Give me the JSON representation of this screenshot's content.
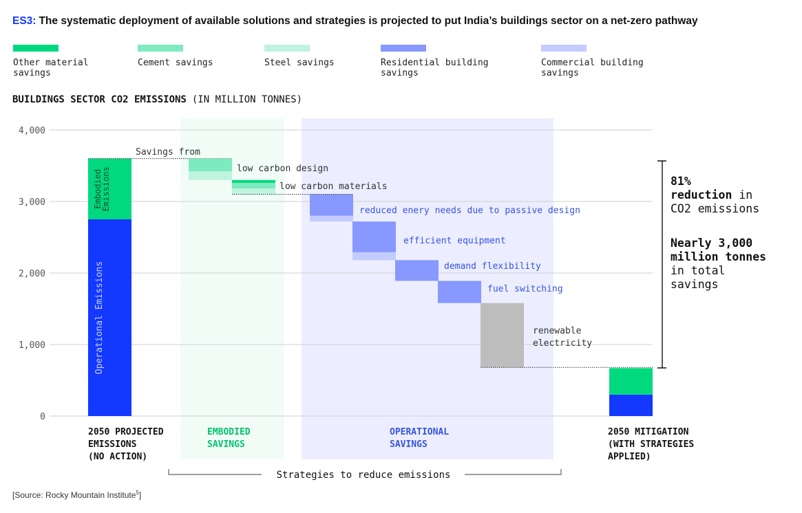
{
  "header": {
    "code": "ES3:",
    "title": "The systematic deployment of available solutions and strategies is projected to put India’s buildings sector on a net-zero pathway"
  },
  "legend": [
    {
      "label_lines": [
        "Other material",
        "savings"
      ],
      "color": "#00d97e"
    },
    {
      "label_lines": [
        "Cement savings"
      ],
      "color": "#7deabf"
    },
    {
      "label_lines": [
        "Steel savings"
      ],
      "color": "#bff3df"
    },
    {
      "label_lines": [
        "Residential building",
        "savings"
      ],
      "color": "#8798ff"
    },
    {
      "label_lines": [
        "Commercial building",
        "savings"
      ],
      "color": "#c3cbff"
    }
  ],
  "chart_title": "BUILDINGS SECTOR CO2 EMISSIONS",
  "chart_unit": "(IN MILLION TONNES)",
  "colors": {
    "operational": "#1338ff",
    "embodied": "#00d97e",
    "cement": "#7deabf",
    "steel": "#bff3df",
    "residential": "#8798ff",
    "commercial": "#c3cbff",
    "renewable": "#bdbdbd",
    "embodied_band": "#f1fcf7",
    "operational_band": "#eceeff",
    "text_blue": "#3654e0",
    "text_green": "#00c46d"
  },
  "chart_data": {
    "type": "bar",
    "subtype": "waterfall",
    "ylim": [
      0,
      4000
    ],
    "yticks": [
      0,
      1000,
      2000,
      3000,
      4000
    ],
    "ytick_labels": [
      "0",
      "1,000",
      "2,000",
      "3,000",
      "4,000"
    ],
    "grid": true,
    "start_bar": {
      "segments": [
        {
          "label": "Operational Emissions",
          "from": 0,
          "to": 2750,
          "color_key": "operational"
        },
        {
          "label_lines": [
            "Embodied",
            "Emissions"
          ],
          "from": 2750,
          "to": 3600,
          "color_key": "embodied"
        }
      ]
    },
    "savings_intro": "Savings from",
    "steps": [
      {
        "label": "low carbon design",
        "label_color": "text",
        "segments": [
          {
            "from": 3600,
            "to": 3420,
            "color_key": "cement"
          },
          {
            "from": 3420,
            "to": 3300,
            "color_key": "steel"
          }
        ]
      },
      {
        "label": "low carbon materials",
        "label_color": "text",
        "segments": [
          {
            "from": 3300,
            "to": 3260,
            "color_key": "embodied"
          },
          {
            "from": 3260,
            "to": 3180,
            "color_key": "cement"
          },
          {
            "from": 3180,
            "to": 3100,
            "color_key": "steel"
          }
        ]
      },
      {
        "label": "reduced enery needs due to passive design",
        "label_color": "blue",
        "segments": [
          {
            "from": 3100,
            "to": 2800,
            "color_key": "residential"
          },
          {
            "from": 2800,
            "to": 2720,
            "color_key": "commercial"
          }
        ]
      },
      {
        "label": "efficient equipment",
        "label_color": "blue",
        "segments": [
          {
            "from": 2720,
            "to": 2290,
            "color_key": "residential"
          },
          {
            "from": 2290,
            "to": 2180,
            "color_key": "commercial"
          }
        ]
      },
      {
        "label": "demand flexibility",
        "label_color": "blue",
        "segments": [
          {
            "from": 2180,
            "to": 1890,
            "color_key": "residential"
          }
        ]
      },
      {
        "label": "fuel switching",
        "label_color": "blue",
        "segments": [
          {
            "from": 1890,
            "to": 1580,
            "color_key": "residential"
          }
        ]
      },
      {
        "label_lines": [
          "renewable",
          "electricity"
        ],
        "label_color": "text",
        "segments": [
          {
            "from": 1580,
            "to": 680,
            "color_key": "renewable"
          }
        ]
      }
    ],
    "end_bar": {
      "segments": [
        {
          "from": 0,
          "to": 300,
          "color_key": "operational"
        },
        {
          "from": 300,
          "to": 670,
          "color_key": "embodied"
        }
      ]
    },
    "x_labels": [
      {
        "lines": [
          "2050 PROJECTED",
          "EMISSIONS",
          "(NO ACTION)"
        ],
        "color": "dark"
      },
      {
        "lines": [
          "EMBODIED",
          "SAVINGS"
        ],
        "color": "green"
      },
      {
        "lines": [
          "OPERATIONAL",
          "SAVINGS"
        ],
        "color": "blue"
      },
      {
        "lines": [
          "2050 MITIGATION",
          "(WITH STRATEGIES",
          "APPLIED)"
        ],
        "color": "dark"
      }
    ],
    "bracket_label": "Strategies to reduce emissions",
    "annotation": {
      "percent_lines": [
        {
          "text": "81%",
          "bold": true
        },
        {
          "text": "reduction",
          "bold": true,
          "suffix": " in"
        },
        {
          "text": "CO2 emissions",
          "bold": false
        }
      ],
      "total_lines": [
        {
          "text": "Nearly 3,000",
          "bold": true
        },
        {
          "text": "million tonnes",
          "bold": true
        },
        {
          "text": "in total",
          "bold": false
        },
        {
          "text": "savings",
          "bold": false
        }
      ]
    }
  },
  "source": "[Source: Rocky Mountain Institute",
  "source_ref": "5",
  "source_close": "]"
}
